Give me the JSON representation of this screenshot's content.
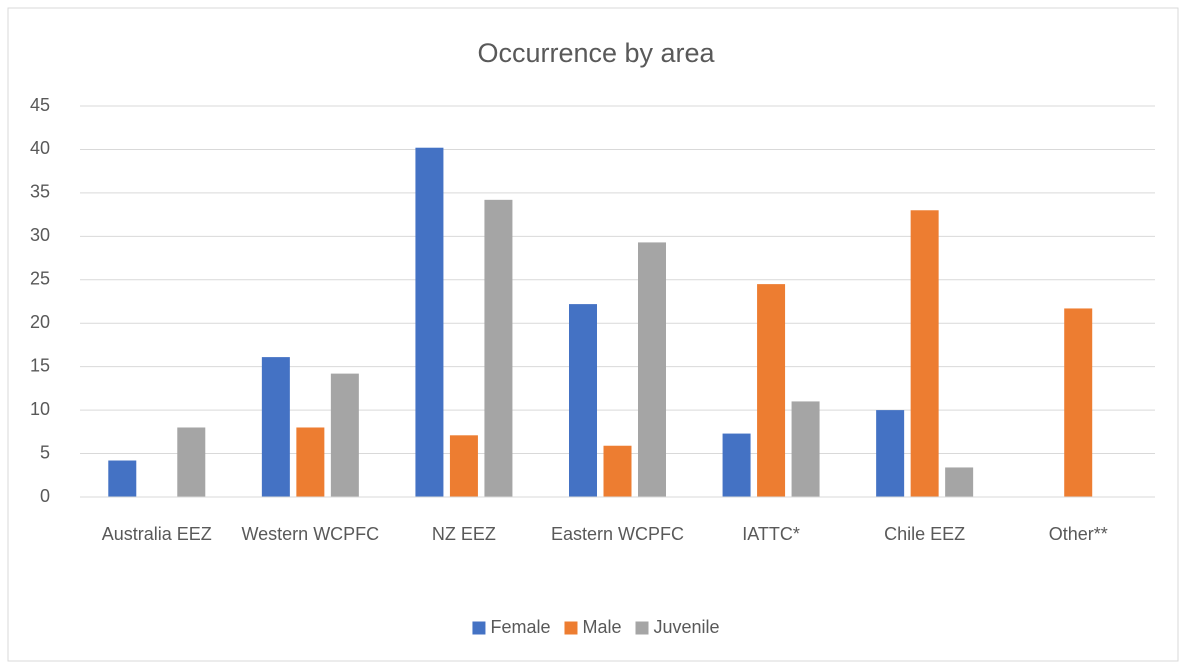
{
  "chart_data": {
    "type": "bar",
    "title": "Occurrence by area",
    "categories": [
      "Australia EEZ",
      "Western WCPFC",
      "NZ EEZ",
      "Eastern WCPFC",
      "IATTC*",
      "Chile EEZ",
      "Other**"
    ],
    "series": [
      {
        "name": "Female",
        "color": "#4472c4",
        "values": [
          4.2,
          16.1,
          40.2,
          22.2,
          7.3,
          10.0,
          0
        ]
      },
      {
        "name": "Male",
        "color": "#ed7d31",
        "values": [
          0,
          8.0,
          7.1,
          5.9,
          24.5,
          33.0,
          21.7
        ]
      },
      {
        "name": "Juvenile",
        "color": "#a5a5a5",
        "values": [
          8.0,
          14.2,
          34.2,
          29.3,
          11.0,
          3.4,
          0
        ]
      }
    ],
    "ylim": [
      0,
      45
    ],
    "yticks": [
      0,
      5,
      10,
      15,
      20,
      25,
      30,
      35,
      40,
      45
    ],
    "grid": true,
    "legend": "bottom"
  }
}
